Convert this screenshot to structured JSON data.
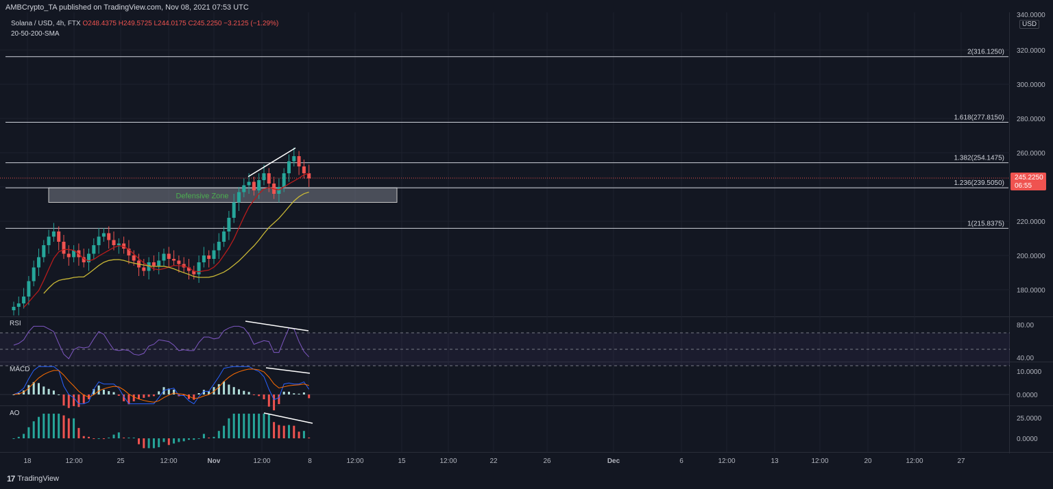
{
  "header": {
    "published_text": "AMBCrypto_TA published on TradingView.com, Nov 08, 2021 07:53 UTC"
  },
  "legend": {
    "symbol": "Solana / USD, 4h, FTX",
    "ohlc": "O248.4375  H249.5725  L244.0175  C245.2250  −3.2125 (−1.29%)",
    "indicator": "20-50-200-SMA"
  },
  "currency_label": "USD",
  "price_axis": {
    "top_partial_label": "340.0000",
    "ticks": [
      "320.0000",
      "300.0000",
      "280.0000",
      "260.0000",
      "220.0000",
      "200.0000",
      "180.0000"
    ],
    "current_price_label": "245.2250",
    "countdown_label": "06:55"
  },
  "fib_levels": [
    {
      "label": "2(316.1250)",
      "value": 316.125
    },
    {
      "label": "1.618(277.8150)",
      "value": 277.815
    },
    {
      "label": "1.382(254.1475)",
      "value": 254.1475
    },
    {
      "label": "1.236(239.5050)",
      "value": 239.505
    },
    {
      "label": "1(215.8375)",
      "value": 215.8375
    }
  ],
  "zone_label": "Defensive Zone",
  "panes": {
    "rsi": {
      "title": "RSI",
      "ticks": [
        "80.00",
        "40.00"
      ]
    },
    "macd": {
      "title": "MACD",
      "ticks": [
        "10.0000",
        "0.0000"
      ]
    },
    "ao": {
      "title": "AO",
      "ticks": [
        "25.0000",
        "0.0000"
      ]
    }
  },
  "time_axis": [
    "18",
    "12:00",
    "25",
    "12:00",
    "Nov",
    "12:00",
    "8",
    "12:00",
    "15",
    "12:00",
    "22",
    "26",
    "Dec",
    "6",
    "12:00",
    "13",
    "12:00",
    "20",
    "12:00",
    "27"
  ],
  "branding": "TradingView",
  "colors": {
    "up": "#26a69a",
    "down": "#ef5350",
    "sma20": "#b71c1c",
    "sma50": "#c9b836",
    "rsi": "#7e57c2",
    "macd": "#2962ff",
    "signal": "#ff6d00",
    "zone": "#787b86"
  },
  "chart_data": {
    "type": "candlestick",
    "price_scale": {
      "min": 170,
      "max": 340
    },
    "current_price": 245.225,
    "defensive_zone": [
      231,
      239.5
    ],
    "close_series": [
      170,
      172,
      176,
      185,
      193,
      199,
      206,
      211,
      214,
      208,
      201,
      199,
      203,
      199,
      196,
      201,
      206,
      211,
      213,
      209,
      206,
      207,
      204,
      200,
      197,
      193,
      191,
      196,
      194,
      197,
      201,
      198,
      197,
      195,
      193,
      191,
      189,
      196,
      200,
      198,
      203,
      208,
      214,
      222,
      231,
      237,
      241,
      243,
      238,
      244,
      248,
      242,
      236,
      240,
      248,
      255,
      258,
      252,
      248,
      245
    ]
  }
}
